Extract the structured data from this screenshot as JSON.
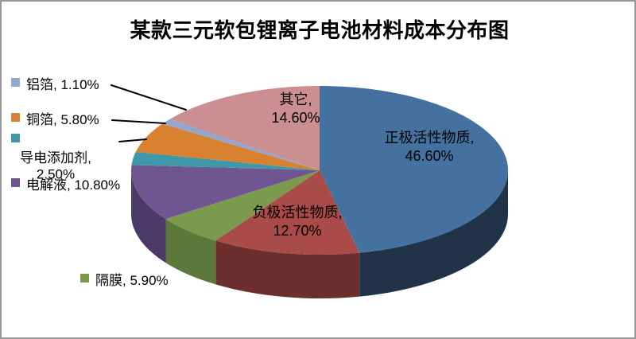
{
  "chart_data": {
    "type": "pie",
    "style": "3d-pie",
    "title": "某款三元软包锂离子电池材料成本分布图",
    "unit": "%",
    "total": 100.0,
    "slices": [
      {
        "key": "cathode-active-material",
        "name": "正极活性物质",
        "value": 46.6,
        "label_line1": "正极活性物质,",
        "label_line2": "46.60%",
        "color": "#44719F",
        "side_color": "#203349"
      },
      {
        "key": "anode-active-material",
        "name": "负极活性物质",
        "value": 12.7,
        "label_line1": "负极活性物质,",
        "label_line2": "12.70%",
        "color": "#A94B49",
        "side_color": "#6C2F2E"
      },
      {
        "key": "separator",
        "name": "隔膜",
        "value": 5.9,
        "color": "#7C9A4D",
        "side_color": "#5C783A"
      },
      {
        "key": "electrolyte",
        "name": "电解液",
        "value": 10.8,
        "color": "#6F5693",
        "side_color": "#4B3A66"
      },
      {
        "key": "conductive-additive",
        "name": "导电添加剂",
        "value": 2.5,
        "color": "#3E98A8",
        "side_color": "#2A6874"
      },
      {
        "key": "copper-foil",
        "name": "铜箔",
        "value": 5.8,
        "color": "#D8812F",
        "side_color": "#9B5C20"
      },
      {
        "key": "aluminum-foil",
        "name": "铝箔",
        "value": 1.1,
        "color": "#92A7D0",
        "side_color": "#66789D"
      },
      {
        "key": "others",
        "name": "其它",
        "value": 14.6,
        "label_line1": "其它,",
        "label_line2": "14.60%",
        "color": "#CB8E91",
        "side_color": "#955F62"
      }
    ],
    "callouts": [
      {
        "key": "aluminum-foil",
        "text": "铝箔, 1.10%"
      },
      {
        "key": "copper-foil",
        "text": "铜箔, 5.80%"
      },
      {
        "key": "conductive-additive",
        "text": "导电添加剂, 2.50%"
      },
      {
        "key": "electrolyte",
        "text": "电解液, 10.80%"
      },
      {
        "key": "separator",
        "text": "隔膜, 5.90%"
      }
    ],
    "legend_position": "left",
    "labels_inside": true,
    "start_angle_deg": 0,
    "direction": "clockwise"
  }
}
